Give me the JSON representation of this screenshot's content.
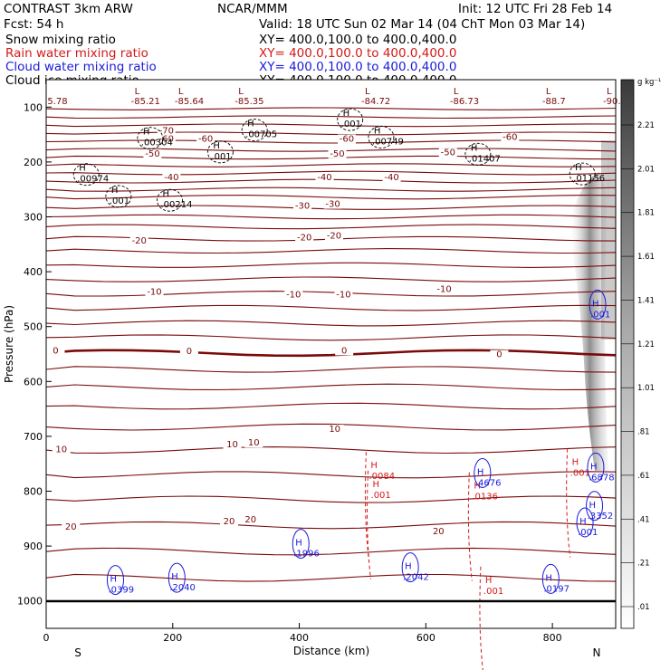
{
  "header": {
    "model": "CONTRAST  3km ARW",
    "center": "NCAR/MMM",
    "init": "Init: 12 UTC Fri 28 Feb 14",
    "fcst": "Fcst:   54 h",
    "valid": "Valid: 18 UTC Sun 02 Mar 14 (04 ChT Mon 03 Mar 14)",
    "legend": [
      {
        "label": "Snow mixing ratio",
        "xy": "XY= 400.0,100.0 to 400.0,400.0",
        "color": "#000000"
      },
      {
        "label": "Rain water mixing ratio",
        "xy": "XY= 400.0,100.0 to 400.0,400.0",
        "color": "#d41a1a"
      },
      {
        "label": "Cloud water mixing ratio",
        "xy": "XY= 400.0,100.0 to 400.0,400.0",
        "color": "#1a1adc"
      },
      {
        "label": "Cloud ice mixing ratio",
        "xy": "XY= 400.0,100.0 to 400.0,400.0",
        "color": "#000000"
      }
    ]
  },
  "chart_data": {
    "type": "contour",
    "xlabel": "Distance (km)",
    "ylabel": "Pressure (hPa)",
    "xlim": [
      0,
      900
    ],
    "ylim": [
      1050,
      50
    ],
    "xticks": [
      "0",
      "200",
      "400",
      "600",
      "800"
    ],
    "yticks": [
      "100",
      "200",
      "300",
      "400",
      "500",
      "600",
      "700",
      "800",
      "900",
      "1000"
    ],
    "x_end_labels": {
      "left": "S",
      "right": "N"
    },
    "colorbar": {
      "unit": "g kg⁻¹",
      "ticks": [
        "2.21",
        "2.01",
        "1.81",
        "1.61",
        "1.41",
        "1.21",
        "1.01",
        ".81",
        ".61",
        ".41",
        ".21",
        ".01"
      ]
    },
    "temperature_contours": {
      "color": "#7a0a0a",
      "labels": [
        {
          "text": "-70",
          "x": 190,
          "p": 148
        },
        {
          "text": "-60",
          "x": 190,
          "p": 163
        },
        {
          "text": "-60",
          "x": 252,
          "p": 163
        },
        {
          "text": "-60",
          "x": 475,
          "p": 163
        },
        {
          "text": "-60",
          "x": 733,
          "p": 160
        },
        {
          "text": "-50",
          "x": 168,
          "p": 190
        },
        {
          "text": "-50",
          "x": 460,
          "p": 190
        },
        {
          "text": "-50",
          "x": 635,
          "p": 188
        },
        {
          "text": "-40",
          "x": 198,
          "p": 233
        },
        {
          "text": "-40",
          "x": 440,
          "p": 233
        },
        {
          "text": "-40",
          "x": 546,
          "p": 233
        },
        {
          "text": "-30",
          "x": 405,
          "p": 285
        },
        {
          "text": "-30",
          "x": 453,
          "p": 282
        },
        {
          "text": "-20",
          "x": 147,
          "p": 349
        },
        {
          "text": "-20",
          "x": 408,
          "p": 343
        },
        {
          "text": "-20",
          "x": 455,
          "p": 340
        },
        {
          "text": "-10",
          "x": 171,
          "p": 442
        },
        {
          "text": "-10",
          "x": 391,
          "p": 447
        },
        {
          "text": "-10",
          "x": 470,
          "p": 447
        },
        {
          "text": "-10",
          "x": 629,
          "p": 437
        },
        {
          "text": "0",
          "x": 15,
          "p": 549
        },
        {
          "text": "0",
          "x": 226,
          "p": 550
        },
        {
          "text": "0",
          "x": 471,
          "p": 549
        },
        {
          "text": "0",
          "x": 716,
          "p": 556
        },
        {
          "text": "10",
          "x": 24,
          "p": 729
        },
        {
          "text": "10",
          "x": 294,
          "p": 720
        },
        {
          "text": "10",
          "x": 328,
          "p": 717
        },
        {
          "text": "10",
          "x": 456,
          "p": 692
        },
        {
          "text": "20",
          "x": 39,
          "p": 870
        },
        {
          "text": "20",
          "x": 289,
          "p": 860
        },
        {
          "text": "20",
          "x": 323,
          "p": 857
        },
        {
          "text": "20",
          "x": 620,
          "p": 878
        }
      ],
      "top_lows": [
        "5.78",
        "-85.21",
        "-85.64",
        "-85.35",
        "-84.72",
        "-86.73",
        "-88.7",
        "-90."
      ],
      "top_low_x": [
        2,
        134,
        203,
        298,
        498,
        638,
        784,
        880
      ]
    },
    "series": [
      {
        "name": "Snow mixing ratio",
        "color": "#000000",
        "maxima": [
          {
            "value": ".00304",
            "x": 150,
            "p": 170
          },
          {
            "value": ".00705",
            "x": 315,
            "p": 155
          },
          {
            "value": ".001",
            "x": 261,
            "p": 195
          },
          {
            "value": ".001",
            "x": 466,
            "p": 136
          },
          {
            "value": ".00749",
            "x": 515,
            "p": 168
          },
          {
            "value": ".01407",
            "x": 668,
            "p": 199
          },
          {
            "value": ".00974",
            "x": 49,
            "p": 236
          },
          {
            "value": ".001",
            "x": 100,
            "p": 276
          },
          {
            "value": ".00214",
            "x": 181,
            "p": 283
          },
          {
            "value": ".01156",
            "x": 833,
            "p": 235
          }
        ]
      },
      {
        "name": "Rain water mixing ratio",
        "color": "#d41a1a",
        "maxima": [
          {
            "value": ".0084",
            "x": 510,
            "p": 778
          },
          {
            "value": ".001",
            "x": 513,
            "p": 812
          },
          {
            "value": ".0136",
            "x": 673,
            "p": 815
          },
          {
            "value": ".001",
            "x": 691,
            "p": 987
          },
          {
            "value": ".001",
            "x": 828,
            "p": 772
          }
        ]
      },
      {
        "name": "Cloud water mixing ratio",
        "color": "#1a1adc",
        "maxima": [
          {
            "value": ".4676",
            "x": 678,
            "p": 790
          },
          {
            "value": ".1996",
            "x": 391,
            "p": 919
          },
          {
            "value": ".2042",
            "x": 564,
            "p": 962
          },
          {
            "value": ".0399",
            "x": 98,
            "p": 985
          },
          {
            "value": ".2040",
            "x": 195,
            "p": 981
          },
          {
            "value": ".0197",
            "x": 786,
            "p": 983
          },
          {
            "value": ".001",
            "x": 860,
            "p": 483
          },
          {
            "value": ".6878",
            "x": 857,
            "p": 780
          },
          {
            "value": ".3352",
            "x": 855,
            "p": 850
          },
          {
            "value": ".001",
            "x": 840,
            "p": 880
          }
        ]
      },
      {
        "name": "Cloud ice mixing ratio",
        "color": "#000000",
        "maxima": []
      }
    ]
  }
}
